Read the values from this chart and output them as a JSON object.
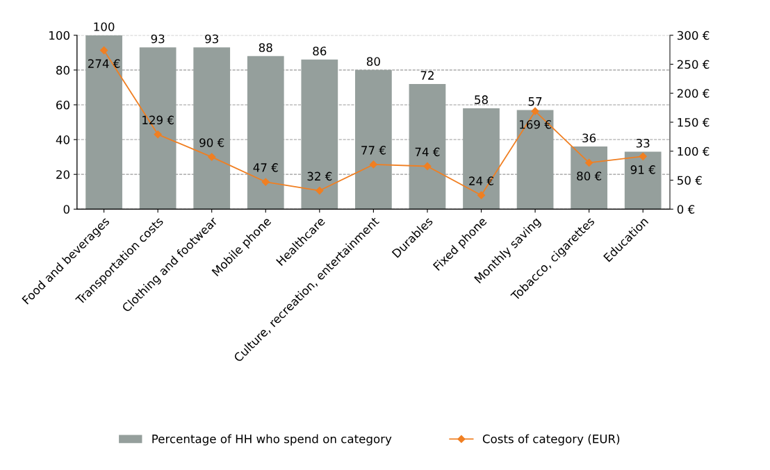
{
  "chart_data": {
    "type": "bar",
    "categories": [
      "Food and beverages",
      "Transportation costs",
      "Clothing and footwear",
      "Mobile phone",
      "Healthcare",
      "Culture, recreation, entertainment",
      "Durables",
      "Fixed phone",
      "Monthly saving",
      "Tobacco, cigarettes",
      "Education"
    ],
    "series": [
      {
        "name": "Percentage of HH who spend on category",
        "color": "#959f9c",
        "values": [
          100,
          93,
          93,
          88,
          86,
          80,
          72,
          58,
          57,
          36,
          33
        ]
      },
      {
        "name": "Costs of category (EUR)",
        "type": "line",
        "axis": "y2",
        "color": "#f07f22",
        "marker": "diamond",
        "values": [
          274,
          129,
          90,
          47,
          32,
          77,
          74,
          24,
          169,
          80,
          91
        ],
        "value_labels": [
          "274 €",
          "129 €",
          "90 €",
          "47 €",
          "32 €",
          "77 €",
          "74 €",
          "24 €",
          "169 €",
          "80 €",
          "91 €"
        ]
      }
    ],
    "data_labels": true,
    "ylim": [
      0,
      100
    ],
    "yticks": [
      0,
      20,
      40,
      60,
      80,
      100
    ],
    "y2lim": [
      0,
      300
    ],
    "y2ticks": [
      {
        "value": 0,
        "label": "0 €"
      },
      {
        "value": 50,
        "label": "50 €"
      },
      {
        "value": 100,
        "label": "100 €"
      },
      {
        "value": 150,
        "label": "150 €"
      },
      {
        "value": 200,
        "label": "200 €"
      },
      {
        "value": 250,
        "label": "250 €"
      },
      {
        "value": 300,
        "label": "300 €"
      }
    ],
    "grid": "y",
    "legend": "bottom"
  }
}
